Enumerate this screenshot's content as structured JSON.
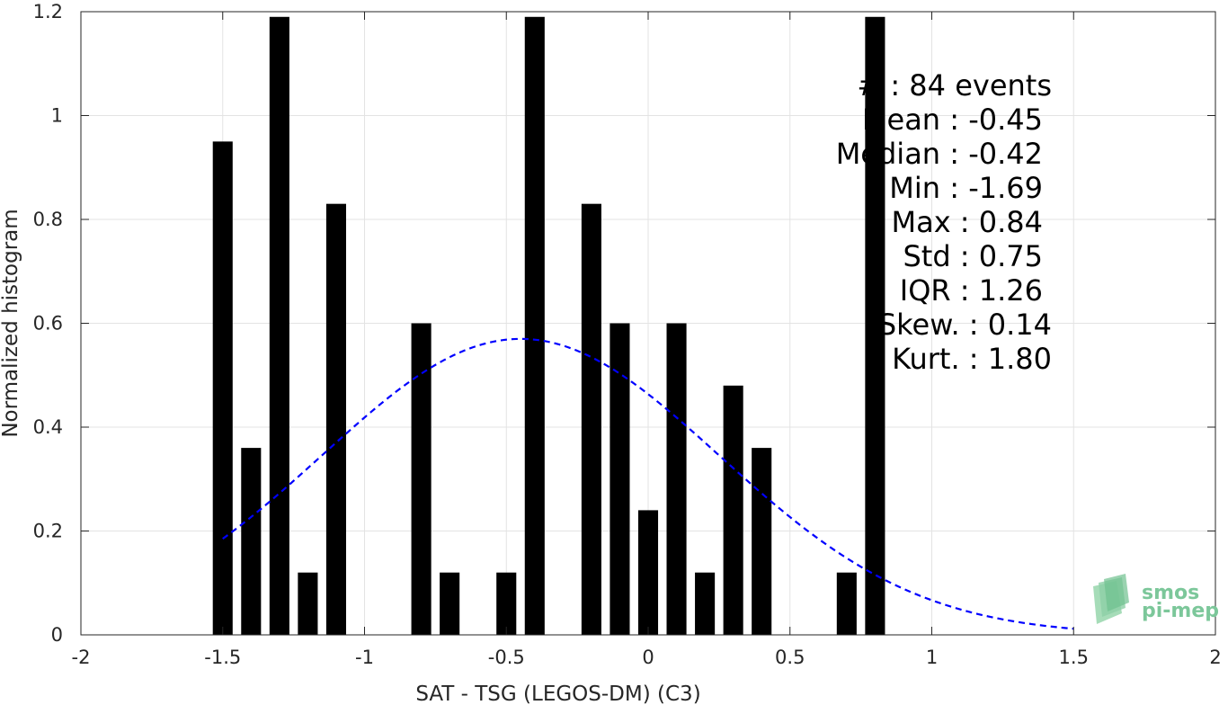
{
  "chart_data": {
    "type": "bar",
    "xlabel": "SAT - TSG (LEGOS-DM) (C3)",
    "ylabel": "Normalized histogram",
    "xlim": [
      -2,
      2
    ],
    "ylim": [
      0,
      1.2
    ],
    "x_ticks": [
      -2,
      -1.5,
      -1,
      -0.5,
      0,
      0.5,
      1,
      1.5,
      2
    ],
    "x_tick_labels": [
      "-2",
      "-1.5",
      "-1",
      "-0.5",
      "0",
      "0.5",
      "1",
      "1.5",
      "2"
    ],
    "y_ticks": [
      0,
      0.2,
      0.4,
      0.6,
      0.8,
      1,
      1.2
    ],
    "y_tick_labels": [
      "0",
      "0.2",
      "0.4",
      "0.6",
      "0.8",
      "1",
      "1.2"
    ],
    "grid": true,
    "bar_width": 0.07,
    "bar_color": "#000000",
    "bars": [
      {
        "x": -1.5,
        "value": 0.95
      },
      {
        "x": -1.4,
        "value": 0.36
      },
      {
        "x": -1.3,
        "value": 1.19
      },
      {
        "x": -1.2,
        "value": 0.12
      },
      {
        "x": -1.1,
        "value": 0.83
      },
      {
        "x": -0.8,
        "value": 0.6
      },
      {
        "x": -0.7,
        "value": 0.12
      },
      {
        "x": -0.5,
        "value": 0.12
      },
      {
        "x": -0.4,
        "value": 1.19
      },
      {
        "x": -0.2,
        "value": 0.83
      },
      {
        "x": -0.1,
        "value": 0.6
      },
      {
        "x": 0.0,
        "value": 0.24
      },
      {
        "x": 0.1,
        "value": 0.6
      },
      {
        "x": 0.2,
        "value": 0.12
      },
      {
        "x": 0.3,
        "value": 0.48
      },
      {
        "x": 0.4,
        "value": 0.36
      },
      {
        "x": 0.7,
        "value": 0.12
      },
      {
        "x": 0.8,
        "value": 1.19
      }
    ],
    "fit_curve": {
      "style": "dashed",
      "color": "#0000ff",
      "mean": -0.45,
      "std": 0.7,
      "x_range": [
        -1.5,
        1.5
      ]
    },
    "annotations": [
      "# : 84 events",
      "Mean : -0.45",
      "Median : -0.42",
      "Min : -1.69",
      "Max : 0.84",
      "Std : 0.75",
      "IQR : 1.26",
      "Skew. : 0.14",
      "Kurt. : 1.80"
    ]
  },
  "logo": {
    "line1": "smos",
    "line2": "pi-mep",
    "color": "#7cc79a"
  }
}
